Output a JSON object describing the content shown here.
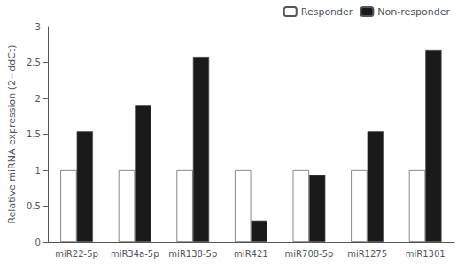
{
  "chart_data": {
    "type": "bar",
    "y_label": "Relative miRNA expression (2−ddCt)",
    "categories": [
      "miR22-5p",
      "miR34a-5p",
      "miR138-5p",
      "miR421",
      "miR708-5p",
      "miR1275",
      "miR1301"
    ],
    "series": [
      {
        "name": "Responder",
        "color": "#ffffff",
        "values": [
          1.0,
          1.0,
          1.0,
          1.0,
          1.0,
          1.0,
          1.0
        ]
      },
      {
        "name": "Non-responder",
        "color": "#1a1a1a",
        "values": [
          1.54,
          1.9,
          2.58,
          0.3,
          0.93,
          1.54,
          2.68
        ]
      }
    ],
    "ylim": [
      0,
      3
    ],
    "yticks": [
      0,
      0.5,
      1,
      1.5,
      2,
      2.5,
      3
    ],
    "grid": false,
    "legend": "upper right"
  }
}
